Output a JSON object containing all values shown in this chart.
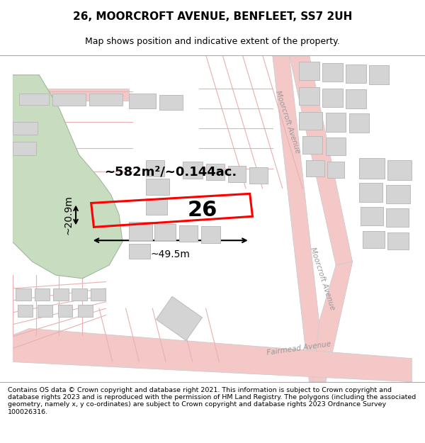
{
  "title": "26, MOORCROFT AVENUE, BENFLEET, SS7 2UH",
  "subtitle": "Map shows position and indicative extent of the property.",
  "footer": "Contains OS data © Crown copyright and database right 2021. This information is subject to Crown copyright and database rights 2023 and is reproduced with the permission of HM Land Registry. The polygons (including the associated geometry, namely x, y co-ordinates) are subject to Crown copyright and database rights 2023 Ordnance Survey 100026316.",
  "bg_color": "#f0f0ea",
  "green_color": "#c8ddc0",
  "green_border": "#a0b89a",
  "road_fill": "#f5c8c8",
  "road_border": "#cccccc",
  "building_fill": "#d4d4d4",
  "building_border": "#bbbbbb",
  "highlight_color": "#ff0000",
  "label_26": "26",
  "area_label": "~582m²/~0.144ac.",
  "width_label": "~49.5m",
  "height_label": "~20.9m",
  "road_label_mc_upper": "Moorcroft Avenue",
  "road_label_mc_lower": "Moorcroft Avenue",
  "road_label_fm": "Fairmead Avenue",
  "title_fontsize": 11,
  "subtitle_fontsize": 9,
  "footer_fontsize": 6.8
}
